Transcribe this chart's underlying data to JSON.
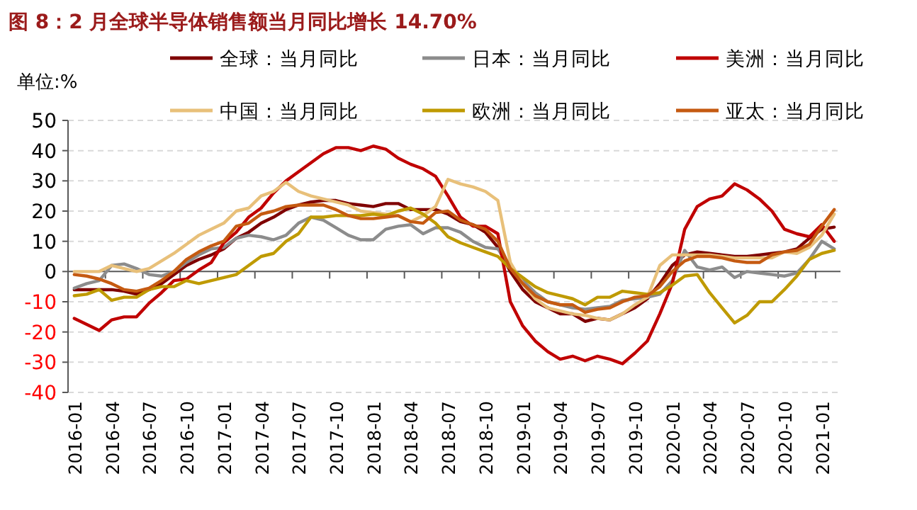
{
  "chart_data": {
    "type": "line",
    "title": "图 8：2 月全球半导体销售额当月同比增长 14.70%",
    "ylabel": "单位:%",
    "categories": [
      "2016-01",
      null,
      null,
      "2016-04",
      null,
      null,
      "2016-07",
      null,
      null,
      "2016-10",
      null,
      null,
      "2017-01",
      null,
      null,
      "2017-04",
      null,
      null,
      "2017-07",
      null,
      null,
      "2017-10",
      null,
      null,
      "2018-01",
      null,
      null,
      "2018-04",
      null,
      null,
      "2018-07",
      null,
      null,
      "2018-10",
      null,
      null,
      "2019-01",
      null,
      null,
      "2019-04",
      null,
      null,
      "2019-07",
      null,
      null,
      "2019-10",
      null,
      null,
      "2020-01",
      null,
      null,
      "2020-04",
      null,
      null,
      "2020-07",
      null,
      null,
      "2020-10",
      null,
      null,
      "2021-01",
      null
    ],
    "series": [
      {
        "name": "全球：当月同比",
        "color": "#7f0000",
        "values": [
          -6,
          -6,
          -6,
          -6,
          -6.5,
          -7.5,
          -6,
          -4,
          -1,
          2,
          4,
          5.5,
          7.5,
          11,
          13,
          16,
          18,
          20.5,
          22,
          23,
          23.5,
          23.5,
          22.5,
          22,
          21.5,
          22.5,
          22.5,
          20.5,
          20.5,
          20.5,
          19,
          16.5,
          15.5,
          13,
          8,
          0,
          -6,
          -10,
          -12,
          -14,
          -14,
          -16.5,
          -15.5,
          -16,
          -14,
          -12,
          -9,
          -4,
          2,
          5.5,
          6.5,
          6,
          5.5,
          5,
          5,
          5.5,
          6,
          6.5,
          7.5,
          11,
          14,
          14.7
        ]
      },
      {
        "name": "日本：当月同比",
        "color": "#8c8c8c",
        "values": [
          -5.5,
          -4,
          -3,
          2,
          2.5,
          1,
          -1,
          -1.5,
          0,
          3,
          5.5,
          7.5,
          8,
          11,
          12,
          11.5,
          10.5,
          12,
          16,
          18,
          17,
          14.5,
          12,
          10.5,
          10.5,
          14,
          15,
          15.5,
          12.5,
          14.5,
          14.5,
          13,
          10,
          8,
          7.5,
          2,
          -3,
          -7,
          -10,
          -11,
          -12,
          -12.5,
          -12,
          -11.5,
          -9.5,
          -9,
          -8.5,
          -7.5,
          -3,
          7,
          1.5,
          0.5,
          1.5,
          -2,
          0,
          -0.5,
          -1,
          -1.5,
          -0.5,
          4,
          10,
          7.5
        ]
      },
      {
        "name": "美洲：当月同比",
        "color": "#c00000",
        "values": [
          -15.5,
          -17.5,
          -19.5,
          -16,
          -15,
          -15,
          -10.5,
          -7,
          -3,
          -2.5,
          0.5,
          3,
          9.5,
          13,
          18,
          21,
          26,
          30,
          33,
          36,
          39,
          41,
          41,
          40,
          41.5,
          40.5,
          37.5,
          35.5,
          34,
          31.5,
          25,
          18,
          15,
          15,
          12.5,
          -10,
          -18,
          -23,
          -26.5,
          -29,
          -28,
          -29.5,
          -28,
          -29,
          -30.5,
          -27,
          -23,
          -14,
          -4,
          14,
          21.5,
          24,
          25,
          29,
          27,
          24,
          20,
          14,
          12.5,
          11.5,
          15.5,
          10
        ]
      },
      {
        "name": "中国：当月同比",
        "color": "#e8c07a",
        "values": [
          0,
          0,
          0,
          2,
          1,
          0,
          1,
          3.5,
          6,
          9,
          12,
          14,
          16,
          20,
          21,
          25,
          26.5,
          29.5,
          26.5,
          25,
          24,
          23,
          22,
          20,
          19.5,
          19,
          18.5,
          16.5,
          18.5,
          21.5,
          30.5,
          29,
          28,
          26.5,
          23.5,
          3,
          -4,
          -9,
          -12,
          -13,
          -14,
          -14.5,
          -15.5,
          -16,
          -14,
          -11,
          -8.5,
          2,
          5.5,
          5.5,
          5.5,
          5.5,
          5,
          4.5,
          4.5,
          4.5,
          4.5,
          6.5,
          6,
          8,
          12,
          19
        ]
      },
      {
        "name": "欧洲：当月同比",
        "color": "#bf9a00",
        "values": [
          -8,
          -7.5,
          -6,
          -9.5,
          -8.5,
          -8.5,
          -6,
          -5,
          -5,
          -3,
          -4,
          -3,
          -2,
          -1,
          2,
          5,
          6,
          10,
          12.5,
          18,
          18,
          18.5,
          18.5,
          18.5,
          19,
          18.5,
          20,
          21,
          19,
          16,
          11.5,
          9.5,
          8,
          6.5,
          5,
          1,
          -2,
          -5,
          -7,
          -8,
          -9,
          -11,
          -8.5,
          -8.5,
          -6.5,
          -7,
          -7.5,
          -7,
          -4.5,
          -1.5,
          -1,
          -7,
          -12,
          -17,
          -14.5,
          -10,
          -10,
          -6,
          -1.5,
          4,
          6,
          7
        ]
      },
      {
        "name": "亚太：当月同比",
        "color": "#c55a11",
        "values": [
          -1,
          -1.5,
          -2.5,
          -4,
          -6,
          -6.5,
          -5.5,
          -3,
          0,
          4,
          6.5,
          8.5,
          10,
          15,
          16,
          19,
          20,
          21.5,
          22,
          22,
          22,
          20.5,
          18.5,
          17.5,
          17.5,
          18,
          18.5,
          16.5,
          16,
          19.5,
          20,
          17,
          15.5,
          14,
          10,
          1,
          -4,
          -8,
          -10,
          -11,
          -11,
          -13.5,
          -12.5,
          -12,
          -10,
          -8.5,
          -8,
          -5,
          0,
          3.5,
          5,
          5,
          4.5,
          3.5,
          3,
          3,
          5.5,
          6.5,
          7,
          9,
          15,
          20.5
        ]
      }
    ],
    "ylim": [
      -40,
      50
    ],
    "yticks": [
      -40,
      -30,
      -20,
      -10,
      0,
      10,
      20,
      30,
      40,
      50
    ],
    "grid": "y",
    "legend": "top",
    "marker": "none",
    "line_style": "solid"
  }
}
